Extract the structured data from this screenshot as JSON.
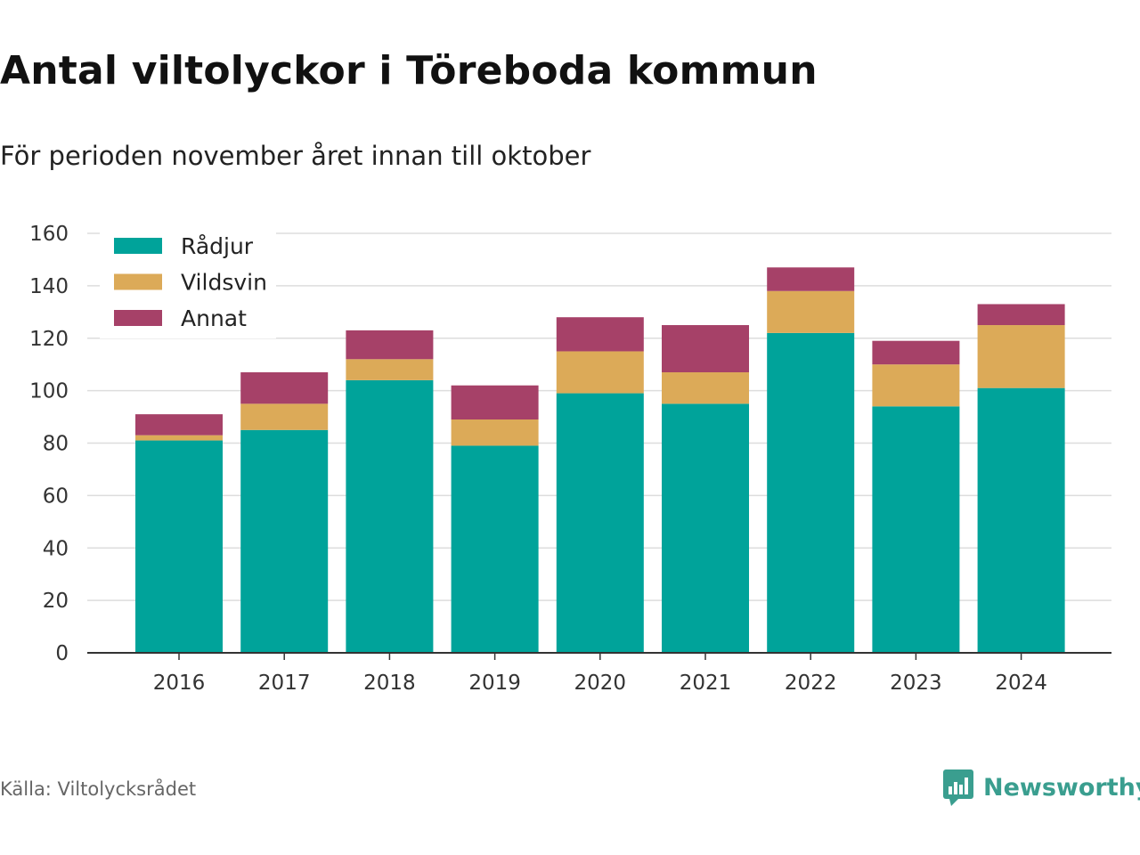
{
  "title": "Antal viltolyckor i Töreboda kommun",
  "subtitle": "För perioden november året innan till oktober",
  "source": "Källa: Viltolycksrådet",
  "brand": {
    "name": "Newsworthy",
    "icon": "newsworthy-logo-icon",
    "color": "#3a9e8f"
  },
  "chart_data": {
    "type": "bar",
    "stacked": true,
    "categories": [
      "2016",
      "2017",
      "2018",
      "2019",
      "2020",
      "2021",
      "2022",
      "2023",
      "2024"
    ],
    "series": [
      {
        "name": "Rådjur",
        "color": "#00a39a",
        "values": [
          81,
          85,
          104,
          79,
          99,
          95,
          122,
          94,
          101
        ]
      },
      {
        "name": "Vildsvin",
        "color": "#dcaa58",
        "values": [
          2,
          10,
          8,
          10,
          16,
          12,
          16,
          16,
          24
        ]
      },
      {
        "name": "Annat",
        "color": "#a64168",
        "values": [
          8,
          12,
          11,
          13,
          13,
          18,
          9,
          9,
          8
        ]
      }
    ],
    "ylim": [
      0,
      160
    ],
    "yticks": [
      "0",
      "20",
      "40",
      "60",
      "80",
      "100",
      "120",
      "140",
      "160"
    ],
    "xlabel": "",
    "ylabel": "",
    "grid": true,
    "legend_position": "top-left"
  }
}
